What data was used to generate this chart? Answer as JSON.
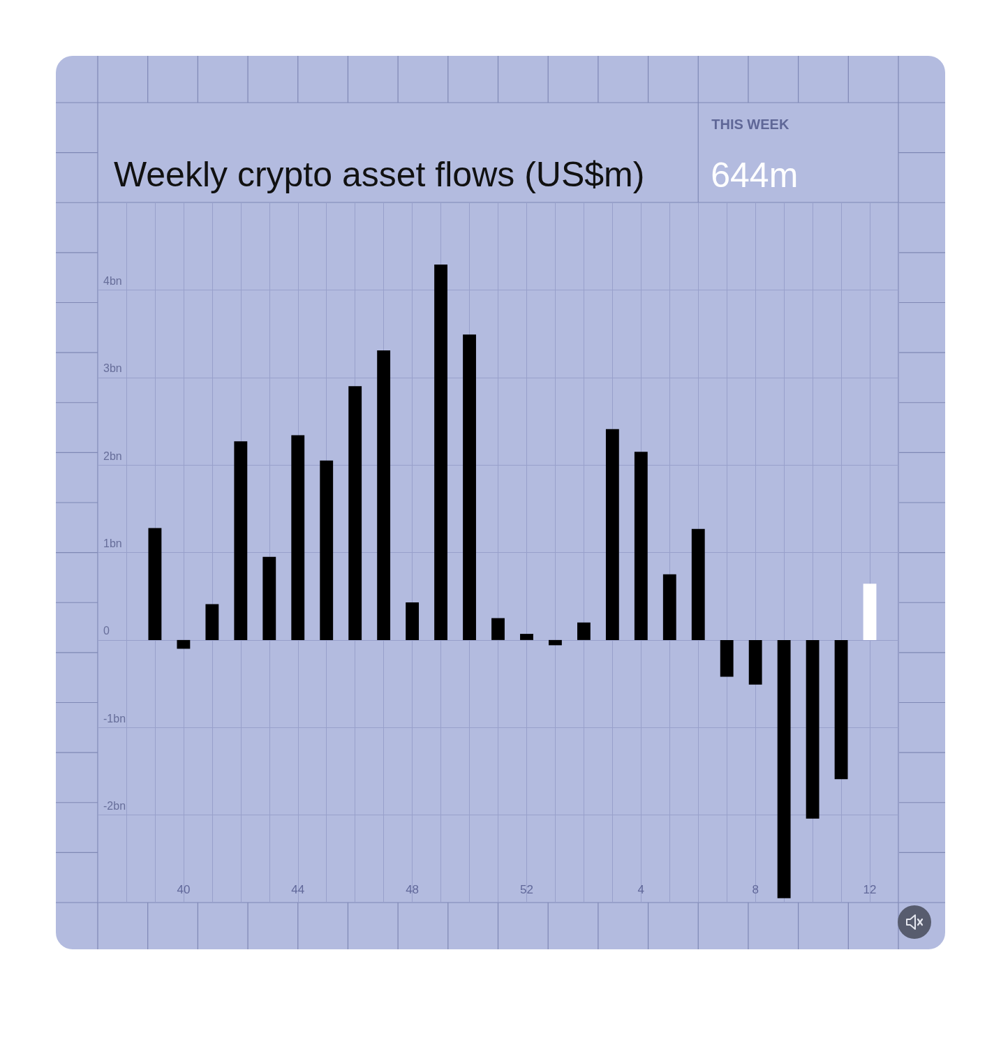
{
  "chart_data": {
    "type": "bar",
    "title": "Weekly crypto asset flows (US$m)",
    "annotations": [
      "THIS WEEK",
      "644m"
    ],
    "categories": [
      null,
      "40",
      null,
      null,
      null,
      "44",
      null,
      null,
      null,
      "48",
      null,
      null,
      null,
      "52",
      null,
      null,
      null,
      "4",
      null,
      null,
      null,
      "8",
      null,
      null,
      null,
      "12"
    ],
    "values": [
      1.28,
      -0.1,
      0.41,
      2.27,
      0.95,
      2.34,
      2.05,
      2.9,
      3.31,
      0.43,
      4.29,
      3.49,
      0.25,
      0.07,
      -0.06,
      0.2,
      2.41,
      2.15,
      0.75,
      1.27,
      -0.42,
      -0.51,
      -2.95,
      -2.04,
      -1.59,
      0.644
    ],
    "colors": [
      "#000000",
      "#000000",
      "#000000",
      "#000000",
      "#000000",
      "#000000",
      "#000000",
      "#000000",
      "#000000",
      "#000000",
      "#000000",
      "#000000",
      "#000000",
      "#000000",
      "#000000",
      "#000000",
      "#000000",
      "#000000",
      "#000000",
      "#000000",
      "#000000",
      "#000000",
      "#000000",
      "#000000",
      "#000000",
      "#ffffff"
    ],
    "ylim": [
      -3,
      5
    ],
    "yticks": [
      {
        "value": -2,
        "label": "-2bn"
      },
      {
        "value": -1,
        "label": "-1bn"
      },
      0,
      {
        "value": 1,
        "label": "1bn"
      },
      {
        "value": 2,
        "label": "2bn"
      },
      {
        "value": 3,
        "label": "3bn"
      },
      {
        "value": 4,
        "label": "4bn"
      }
    ],
    "grid": true
  }
}
